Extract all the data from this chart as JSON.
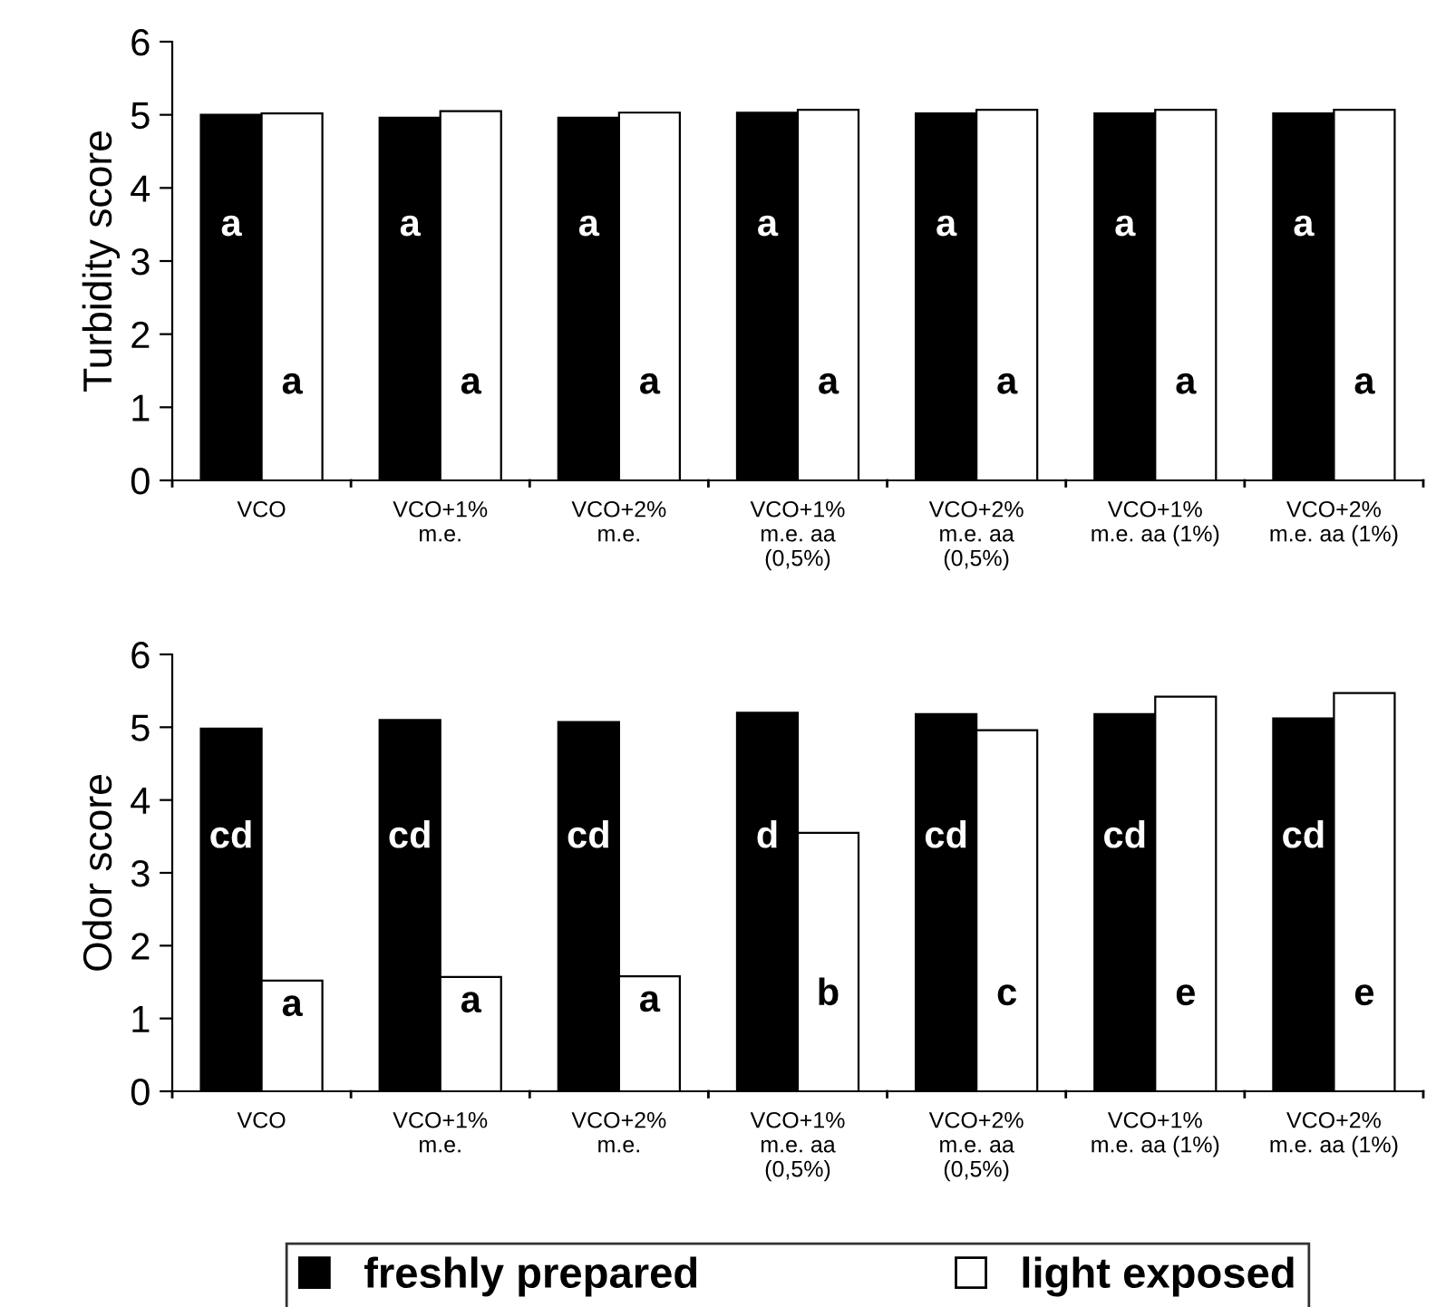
{
  "chart_data": [
    {
      "type": "bar",
      "ylabel": "Turbidity score",
      "categories": [
        "VCO",
        "VCO+1%\nm.e.",
        "VCO+2%\nm.e.",
        "VCO+1%\nm.e. aa\n(0,5%)",
        "VCO+2%\nm.e. aa\n(0,5%)",
        "VCO+1%\nm.e. aa (1%)",
        "VCO+2%\nm.e. aa (1%)"
      ],
      "ylim": [
        0,
        6
      ],
      "yticks": [
        0,
        1,
        2,
        3,
        4,
        5,
        6
      ],
      "grid": false,
      "legend": false,
      "series": [
        {
          "color": "#000000",
          "values": [
            5.0,
            4.96,
            4.96,
            5.03,
            5.02,
            5.02,
            5.02
          ],
          "value_labels": [
            "a",
            "a",
            "a",
            "a",
            "a",
            "a",
            "a"
          ]
        },
        {
          "color": "#ffffff",
          "values": [
            5.02,
            5.05,
            5.03,
            5.07,
            5.07,
            5.07,
            5.07
          ],
          "value_labels": [
            "a",
            "a",
            "a",
            "a",
            "a",
            "a",
            "a"
          ]
        }
      ]
    },
    {
      "type": "bar",
      "ylabel": "Odor score",
      "categories": [
        "VCO",
        "VCO+1%\nm.e.",
        "VCO+2%\nm.e.",
        "VCO+1%\nm.e. aa\n(0,5%)",
        "VCO+2%\nm.e. aa\n(0,5%)",
        "VCO+1%\nm.e. aa (1%)",
        "VCO+2%\nm.e. aa (1%)"
      ],
      "ylim": [
        0,
        6
      ],
      "yticks": [
        0,
        1,
        2,
        3,
        4,
        5,
        6
      ],
      "grid": false,
      "legend": "bottom",
      "series": [
        {
          "name": "freshly prepared",
          "color": "#000000",
          "values": [
            4.98,
            5.1,
            5.07,
            5.2,
            5.18,
            5.18,
            5.12
          ],
          "value_labels": [
            "cd",
            "cd",
            "cd",
            "d",
            "cd",
            "cd",
            "cd"
          ]
        },
        {
          "name": "light exposed",
          "color": "#ffffff",
          "values": [
            1.52,
            1.57,
            1.58,
            3.55,
            4.96,
            5.42,
            5.47
          ],
          "value_labels": [
            "a",
            "a",
            "a",
            "b",
            "c",
            "e",
            "e"
          ]
        }
      ]
    }
  ]
}
